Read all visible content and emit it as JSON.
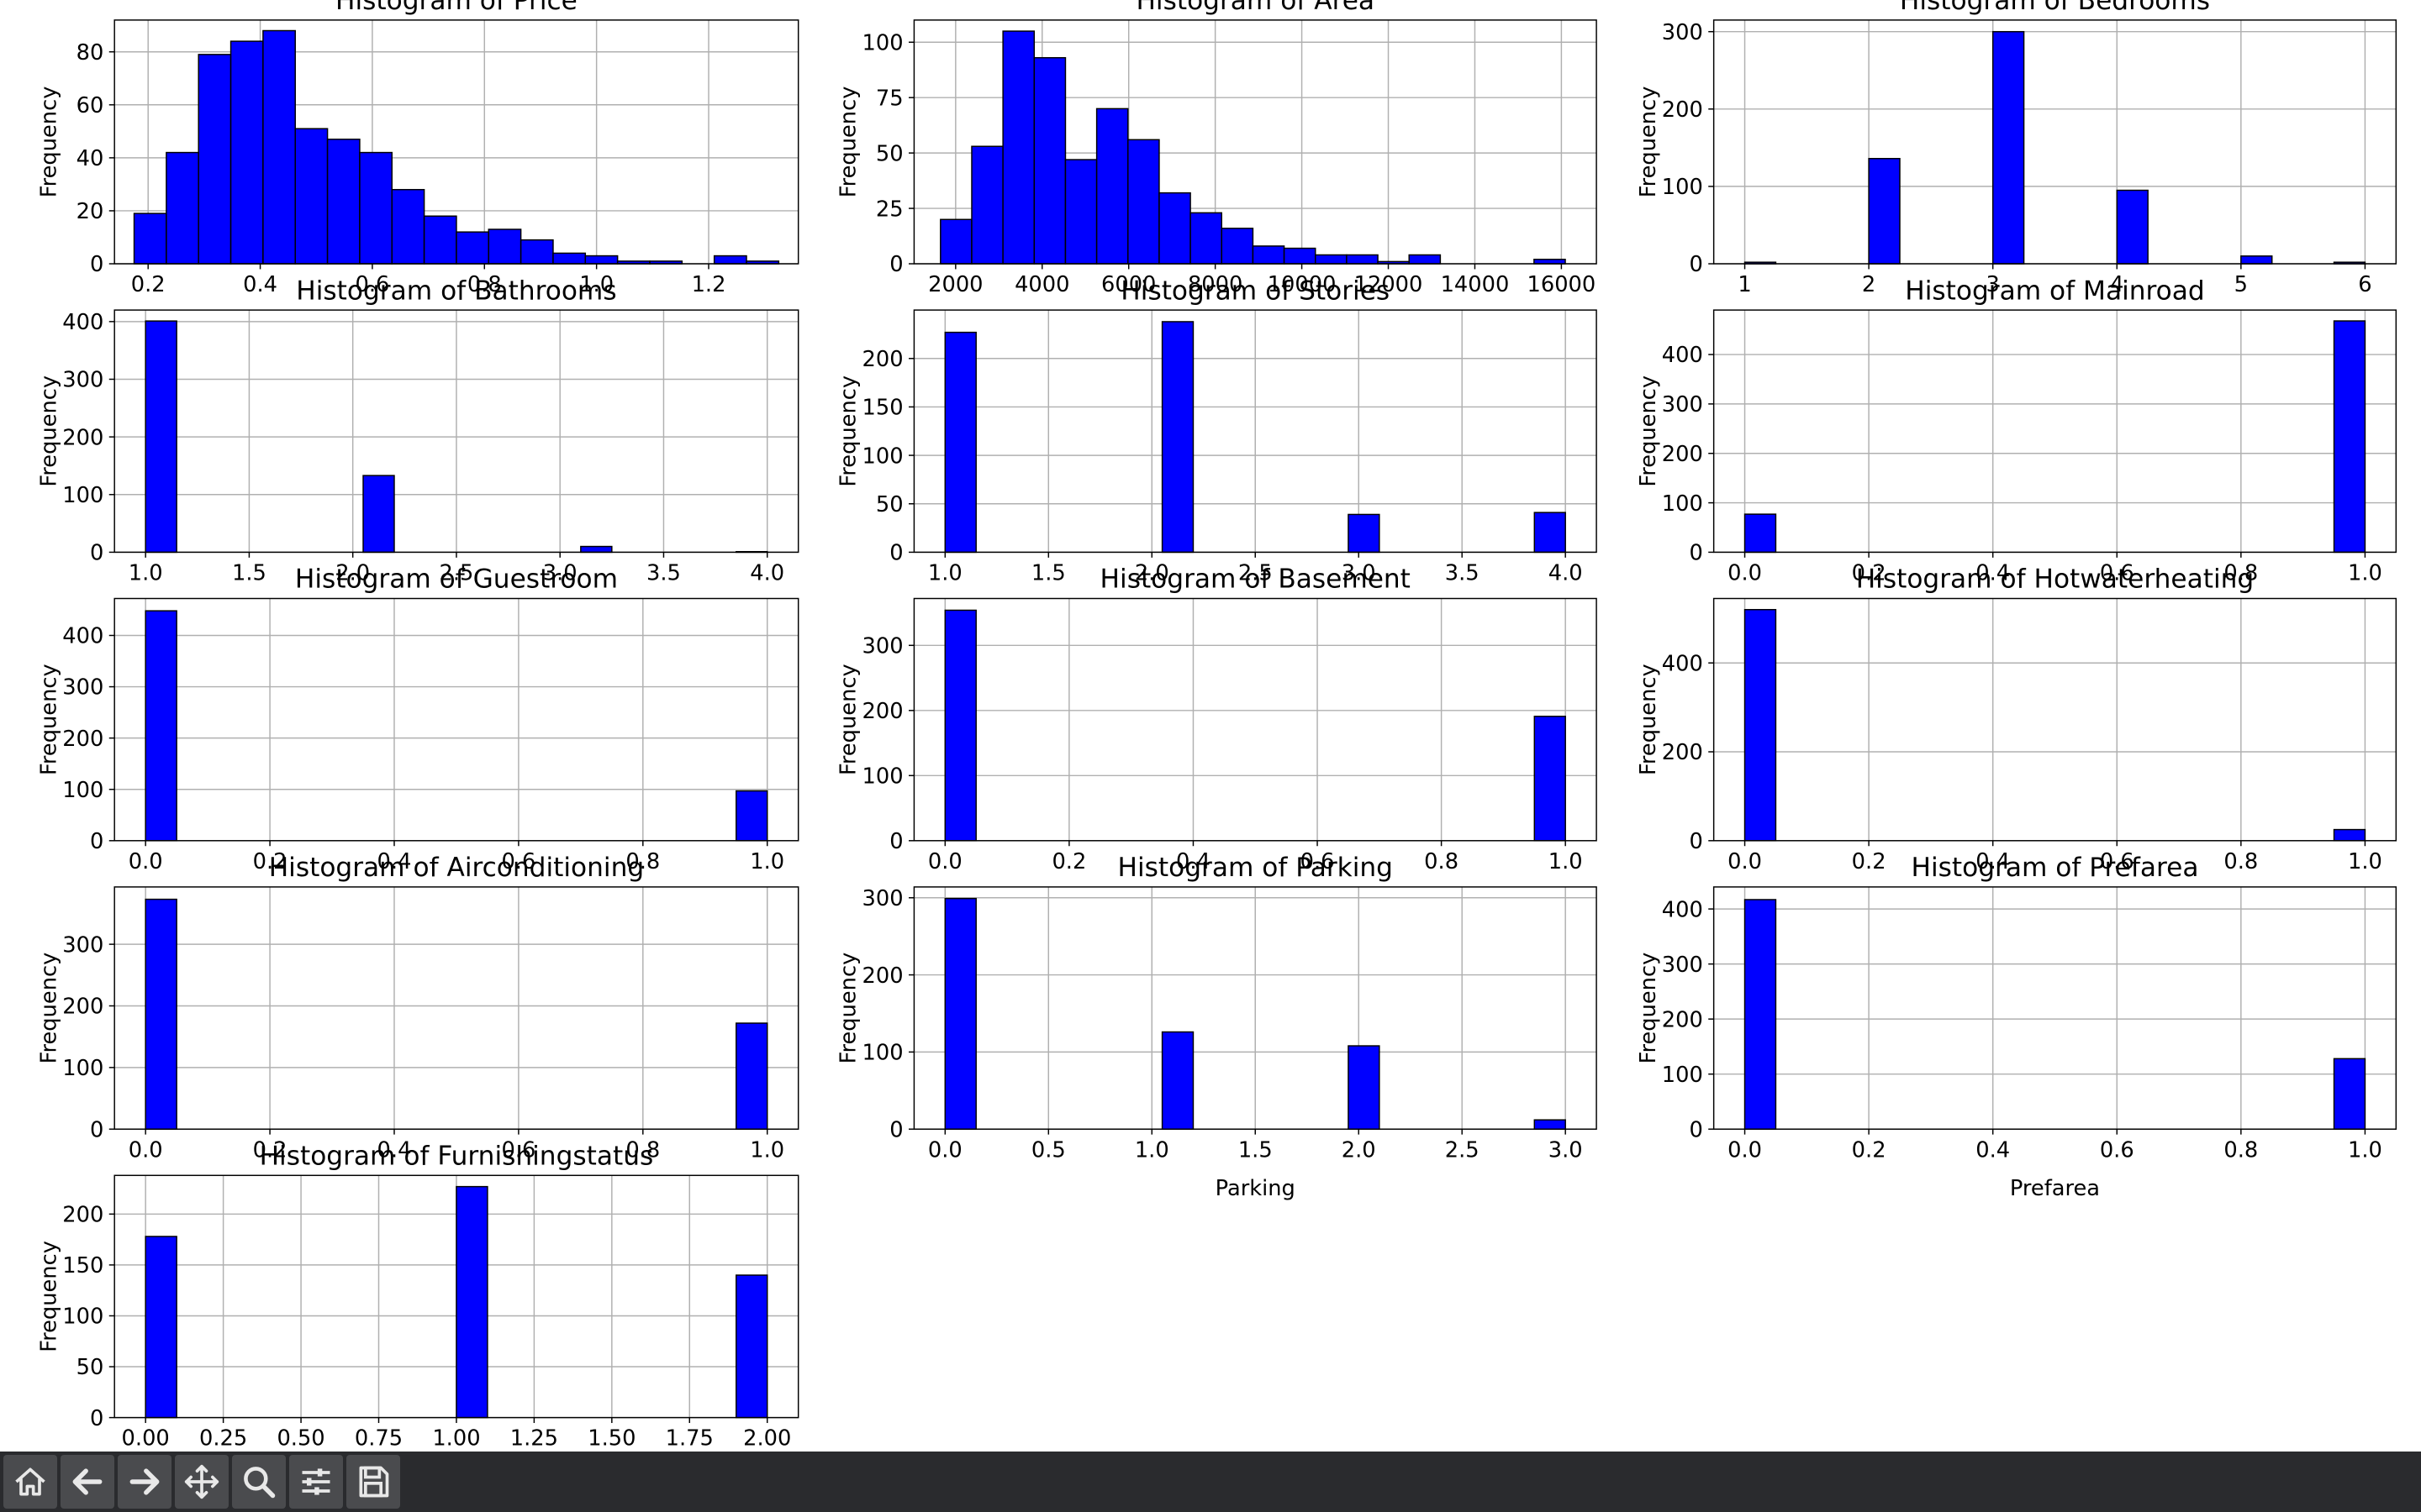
{
  "toolbar": {
    "buttons": [
      {
        "name": "home-button",
        "icon": "home-icon"
      },
      {
        "name": "back-button",
        "icon": "arrow-left-icon"
      },
      {
        "name": "forward-button",
        "icon": "arrow-right-icon"
      },
      {
        "name": "pan-button",
        "icon": "move-icon"
      },
      {
        "name": "zoom-button",
        "icon": "zoom-icon"
      },
      {
        "name": "configure-subplots-button",
        "icon": "sliders-icon"
      },
      {
        "name": "save-button",
        "icon": "save-icon"
      }
    ]
  },
  "style": {
    "bar_color": "#0000ff",
    "edge_color": "#000000",
    "grid_color": "#b0b0b0"
  },
  "chart_data": [
    {
      "type": "bar",
      "title": "Histogram of Price",
      "xlabel": "",
      "ylabel": "Frequency",
      "x_ticks": [
        0.2,
        0.4,
        0.6,
        0.8,
        1.0,
        1.2
      ],
      "x_tick_labels": [
        "0.2",
        "0.4",
        "0.6",
        "0.8",
        "1.0",
        "1.2"
      ],
      "y_ticks": [
        0,
        20,
        40,
        60,
        80
      ],
      "xlim": [
        0.14,
        1.36
      ],
      "ylim": [
        0,
        92
      ],
      "grid": true,
      "bin_start": 0.175,
      "bin_width": 0.0575,
      "values": [
        19,
        42,
        79,
        84,
        88,
        51,
        47,
        42,
        28,
        18,
        12,
        13,
        9,
        4,
        3,
        1,
        1,
        0,
        3,
        1
      ]
    },
    {
      "type": "bar",
      "title": "Histogram of Area",
      "xlabel": "",
      "ylabel": "Frequency",
      "x_ticks": [
        2000,
        4000,
        6000,
        8000,
        10000,
        12000,
        14000,
        16000
      ],
      "x_tick_labels": [
        "2000",
        "4000",
        "6000",
        "8000",
        "10000",
        "12000",
        "14000",
        "16000"
      ],
      "y_ticks": [
        0,
        25,
        50,
        75,
        100
      ],
      "xlim": [
        1040,
        16810
      ],
      "ylim": [
        0,
        110
      ],
      "grid": true,
      "bin_start": 1650,
      "bin_width": 722,
      "values": [
        20,
        53,
        105,
        93,
        47,
        70,
        56,
        32,
        23,
        16,
        8,
        7,
        4,
        4,
        1,
        4,
        0,
        0,
        0,
        2
      ]
    },
    {
      "type": "bar",
      "title": "Histogram of Bedrooms",
      "xlabel": "",
      "ylabel": "Frequency",
      "x_ticks": [
        1,
        2,
        3,
        4,
        5,
        6
      ],
      "x_tick_labels": [
        "1",
        "2",
        "3",
        "4",
        "5",
        "6"
      ],
      "y_ticks": [
        0,
        100,
        200,
        300
      ],
      "xlim": [
        0.75,
        6.25
      ],
      "ylim": [
        0,
        315
      ],
      "grid": true,
      "bin_start": 1,
      "bin_width": 0.25,
      "values": [
        2,
        0,
        0,
        0,
        136,
        0,
        0,
        0,
        300,
        0,
        0,
        0,
        95,
        0,
        0,
        0,
        10,
        0,
        0,
        2
      ]
    },
    {
      "type": "bar",
      "title": "Histogram of Bathrooms",
      "xlabel": "",
      "ylabel": "Frequency",
      "x_ticks": [
        1.0,
        1.5,
        2.0,
        2.5,
        3.0,
        3.5,
        4.0
      ],
      "x_tick_labels": [
        "1.0",
        "1.5",
        "2.0",
        "2.5",
        "3.0",
        "3.5",
        "4.0"
      ],
      "y_ticks": [
        0,
        100,
        200,
        300,
        400
      ],
      "xlim": [
        0.85,
        4.15
      ],
      "ylim": [
        0,
        420
      ],
      "grid": true,
      "bin_start": 1,
      "bin_width": 0.15,
      "values": [
        401,
        0,
        0,
        0,
        0,
        0,
        0,
        133,
        0,
        0,
        0,
        0,
        0,
        0,
        10,
        0,
        0,
        0,
        0,
        1
      ]
    },
    {
      "type": "bar",
      "title": "Histogram of Stories",
      "xlabel": "",
      "ylabel": "Frequency",
      "x_ticks": [
        1.0,
        1.5,
        2.0,
        2.5,
        3.0,
        3.5,
        4.0
      ],
      "x_tick_labels": [
        "1.0",
        "1.5",
        "2.0",
        "2.5",
        "3.0",
        "3.5",
        "4.0"
      ],
      "y_ticks": [
        0,
        50,
        100,
        150,
        200
      ],
      "xlim": [
        0.85,
        4.15
      ],
      "ylim": [
        0,
        250
      ],
      "grid": true,
      "bin_start": 1,
      "bin_width": 0.15,
      "values": [
        227,
        0,
        0,
        0,
        0,
        0,
        0,
        238,
        0,
        0,
        0,
        0,
        0,
        39,
        0,
        0,
        0,
        0,
        0,
        41
      ]
    },
    {
      "type": "bar",
      "title": "Histogram of Mainroad",
      "xlabel": "",
      "ylabel": "Frequency",
      "x_ticks": [
        0.0,
        0.2,
        0.4,
        0.6,
        0.8,
        1.0
      ],
      "x_tick_labels": [
        "0.0",
        "0.2",
        "0.4",
        "0.6",
        "0.8",
        "1.0"
      ],
      "y_ticks": [
        0,
        100,
        200,
        300,
        400
      ],
      "xlim": [
        -0.05,
        1.05
      ],
      "ylim": [
        0,
        490
      ],
      "grid": true,
      "bin_start": 0,
      "bin_width": 0.05,
      "values": [
        77,
        0,
        0,
        0,
        0,
        0,
        0,
        0,
        0,
        0,
        0,
        0,
        0,
        0,
        0,
        0,
        0,
        0,
        0,
        468
      ]
    },
    {
      "type": "bar",
      "title": "Histogram of Guestroom",
      "xlabel": "",
      "ylabel": "Frequency",
      "x_ticks": [
        0.0,
        0.2,
        0.4,
        0.6,
        0.8,
        1.0
      ],
      "x_tick_labels": [
        "0.0",
        "0.2",
        "0.4",
        "0.6",
        "0.8",
        "1.0"
      ],
      "y_ticks": [
        0,
        100,
        200,
        300,
        400
      ],
      "xlim": [
        -0.05,
        1.05
      ],
      "ylim": [
        0,
        472
      ],
      "grid": true,
      "bin_start": 0,
      "bin_width": 0.05,
      "values": [
        448,
        0,
        0,
        0,
        0,
        0,
        0,
        0,
        0,
        0,
        0,
        0,
        0,
        0,
        0,
        0,
        0,
        0,
        0,
        97
      ]
    },
    {
      "type": "bar",
      "title": "Histogram of Basement",
      "xlabel": "",
      "ylabel": "Frequency",
      "x_ticks": [
        0.0,
        0.2,
        0.4,
        0.6,
        0.8,
        1.0
      ],
      "x_tick_labels": [
        "0.0",
        "0.2",
        "0.4",
        "0.6",
        "0.8",
        "1.0"
      ],
      "y_ticks": [
        0,
        100,
        200,
        300
      ],
      "xlim": [
        -0.05,
        1.05
      ],
      "ylim": [
        0,
        372
      ],
      "grid": true,
      "bin_start": 0,
      "bin_width": 0.05,
      "values": [
        354,
        0,
        0,
        0,
        0,
        0,
        0,
        0,
        0,
        0,
        0,
        0,
        0,
        0,
        0,
        0,
        0,
        0,
        0,
        191
      ]
    },
    {
      "type": "bar",
      "title": "Histogram of Hotwaterheating",
      "xlabel": "",
      "ylabel": "Frequency",
      "x_ticks": [
        0.0,
        0.2,
        0.4,
        0.6,
        0.8,
        1.0
      ],
      "x_tick_labels": [
        "0.0",
        "0.2",
        "0.4",
        "0.6",
        "0.8",
        "1.0"
      ],
      "y_ticks": [
        0,
        200,
        400
      ],
      "xlim": [
        -0.05,
        1.05
      ],
      "ylim": [
        0,
        545
      ],
      "grid": true,
      "bin_start": 0,
      "bin_width": 0.05,
      "values": [
        520,
        0,
        0,
        0,
        0,
        0,
        0,
        0,
        0,
        0,
        0,
        0,
        0,
        0,
        0,
        0,
        0,
        0,
        0,
        25
      ]
    },
    {
      "type": "bar",
      "title": "Histogram of Airconditioning",
      "xlabel": "",
      "ylabel": "Frequency",
      "x_ticks": [
        0.0,
        0.2,
        0.4,
        0.6,
        0.8,
        1.0
      ],
      "x_tick_labels": [
        "0.0",
        "0.2",
        "0.4",
        "0.6",
        "0.8",
        "1.0"
      ],
      "y_ticks": [
        0,
        100,
        200,
        300
      ],
      "xlim": [
        -0.05,
        1.05
      ],
      "ylim": [
        0,
        393
      ],
      "grid": true,
      "bin_start": 0,
      "bin_width": 0.05,
      "values": [
        373,
        0,
        0,
        0,
        0,
        0,
        0,
        0,
        0,
        0,
        0,
        0,
        0,
        0,
        0,
        0,
        0,
        0,
        0,
        172
      ]
    },
    {
      "type": "bar",
      "title": "Histogram of Parking",
      "xlabel": "Parking",
      "ylabel": "Frequency",
      "x_ticks": [
        0.0,
        0.5,
        1.0,
        1.5,
        2.0,
        2.5,
        3.0
      ],
      "x_tick_labels": [
        "0.0",
        "0.5",
        "1.0",
        "1.5",
        "2.0",
        "2.5",
        "3.0"
      ],
      "y_ticks": [
        0,
        100,
        200,
        300
      ],
      "xlim": [
        -0.15,
        3.15
      ],
      "ylim": [
        0,
        314
      ],
      "grid": true,
      "bin_start": 0,
      "bin_width": 0.15,
      "values": [
        299,
        0,
        0,
        0,
        0,
        0,
        0,
        126,
        0,
        0,
        0,
        0,
        0,
        108,
        0,
        0,
        0,
        0,
        0,
        12
      ]
    },
    {
      "type": "bar",
      "title": "Histogram of Prefarea",
      "xlabel": "Prefarea",
      "ylabel": "Frequency",
      "x_ticks": [
        0.0,
        0.2,
        0.4,
        0.6,
        0.8,
        1.0
      ],
      "x_tick_labels": [
        "0.0",
        "0.2",
        "0.4",
        "0.6",
        "0.8",
        "1.0"
      ],
      "y_ticks": [
        0,
        100,
        200,
        300,
        400
      ],
      "xlim": [
        -0.05,
        1.05
      ],
      "ylim": [
        0,
        440
      ],
      "grid": true,
      "bin_start": 0,
      "bin_width": 0.05,
      "values": [
        417,
        0,
        0,
        0,
        0,
        0,
        0,
        0,
        0,
        0,
        0,
        0,
        0,
        0,
        0,
        0,
        0,
        0,
        0,
        128
      ]
    },
    {
      "type": "bar",
      "title": "Histogram of Furnishingstatus",
      "xlabel": "",
      "ylabel": "Frequency",
      "x_ticks": [
        0.0,
        0.25,
        0.5,
        0.75,
        1.0,
        1.25,
        1.5,
        1.75,
        2.0
      ],
      "x_tick_labels": [
        "0.00",
        "0.25",
        "0.50",
        "0.75",
        "1.00",
        "1.25",
        "1.50",
        "1.75",
        "2.00"
      ],
      "y_ticks": [
        0,
        50,
        100,
        150,
        200
      ],
      "xlim": [
        -0.1,
        2.1
      ],
      "ylim": [
        0,
        238
      ],
      "grid": true,
      "bin_start": 0,
      "bin_width": 0.1,
      "values": [
        178,
        0,
        0,
        0,
        0,
        0,
        0,
        0,
        0,
        0,
        227,
        0,
        0,
        0,
        0,
        0,
        0,
        0,
        0,
        140
      ]
    }
  ]
}
